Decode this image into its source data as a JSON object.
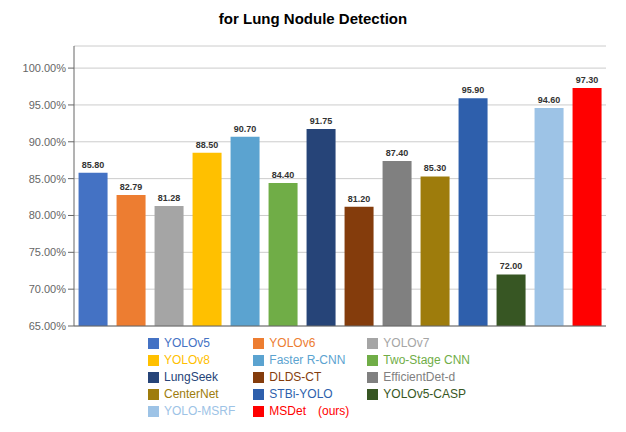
{
  "chart_data": {
    "type": "bar",
    "title": "for Lung Nodule Detection",
    "categories": [
      "YOLOv5",
      "YOLOv6",
      "YOLOv7",
      "YOLOv8",
      "Faster R-CNN",
      "Two-Stage CNN",
      "LungSeek",
      "DLDS-CT",
      "EfficientDet-d",
      "CenterNet",
      "STBi-YOLO",
      "YOLOv5-CASP",
      "YOLO-MSRF",
      "MSDet (ours)"
    ],
    "values": [
      85.8,
      82.79,
      81.28,
      88.5,
      90.7,
      84.4,
      91.75,
      81.2,
      87.4,
      85.3,
      95.9,
      72.0,
      94.6,
      97.3
    ],
    "value_labels": [
      "85.80",
      "82.79",
      "81.28",
      "88.50",
      "90.70",
      "84.40",
      "91.75",
      "81.20",
      "87.40",
      "85.30",
      "95.90",
      "72.00",
      "94.60",
      "97.30"
    ],
    "colors": [
      "#4472C4",
      "#ED7D31",
      "#A5A5A5",
      "#FFC000",
      "#5BA3D0",
      "#70AD47",
      "#264478",
      "#843C0C",
      "#808080",
      "#9E7C0C",
      "#2E5FAC",
      "#375623",
      "#9DC3E6",
      "#FF0000"
    ],
    "ylim": [
      65.0,
      103.0
    ],
    "yticks": [
      {
        "value": 65.0,
        "label": "65.00%"
      },
      {
        "value": 70.0,
        "label": "70.00%"
      },
      {
        "value": 75.0,
        "label": "75.00%"
      },
      {
        "value": 80.0,
        "label": "80.00%"
      },
      {
        "value": 85.0,
        "label": "85.00%"
      },
      {
        "value": 90.0,
        "label": "90.00%"
      },
      {
        "value": 95.0,
        "label": "95.00%"
      },
      {
        "value": 100.0,
        "label": "100.00%"
      }
    ],
    "grid": true,
    "legend": "bottom",
    "data_labels": true,
    "tick_labels": "y"
  }
}
